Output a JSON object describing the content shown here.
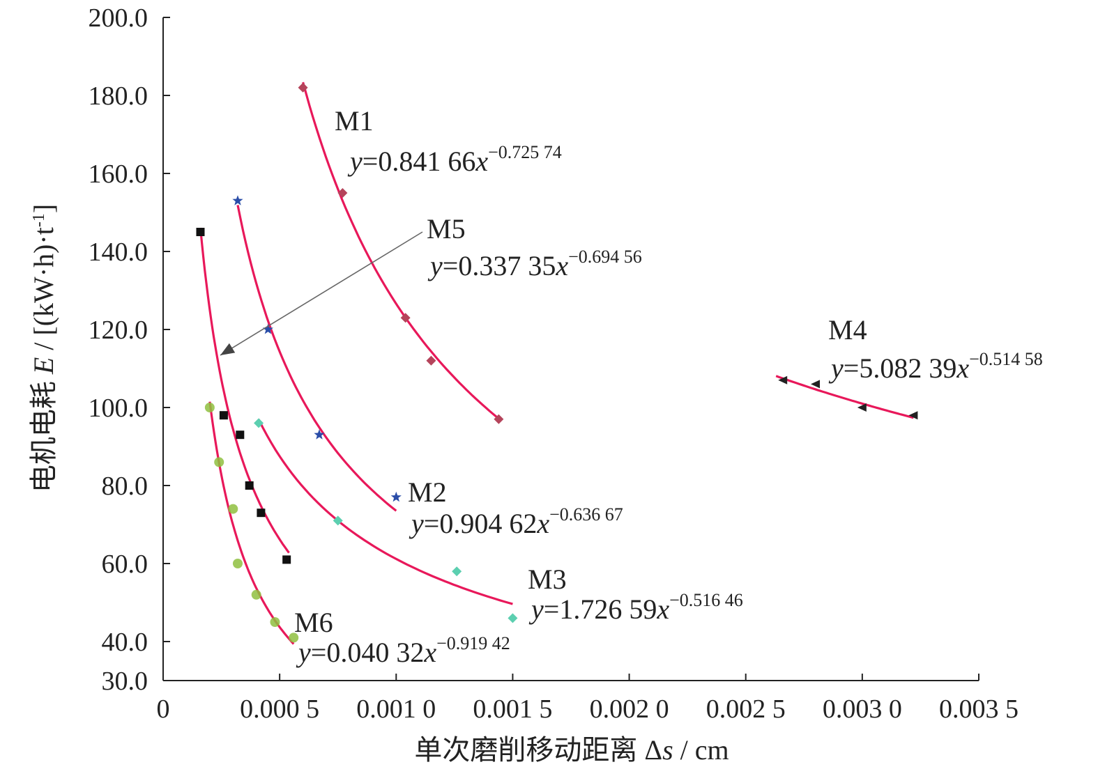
{
  "chart_data": {
    "type": "scatter",
    "xlabel_prefix": "单次磨削移动距离 Δ",
    "xlabel_var": "s",
    "xlabel_suffix": " / cm",
    "ylabel_prefix": "电机电耗 ",
    "ylabel_var": "E",
    "ylabel_suffix": " / [(kW·h)·t",
    "ylabel_sup": "-1",
    "ylabel_end": "]",
    "xlim": [
      0,
      0.0035
    ],
    "ylim": [
      30,
      200
    ],
    "x_ticks": [
      0,
      0.0005,
      0.001,
      0.0015,
      0.002,
      0.0025,
      0.003,
      0.0035
    ],
    "x_tick_labels": [
      "0",
      "0.000 5",
      "0.001 0",
      "0.001 5",
      "0.002 0",
      "0.002 5",
      "0.003 0",
      "0.003 5"
    ],
    "y_ticks": [
      30,
      40,
      60,
      80,
      100,
      120,
      140,
      160,
      180,
      200
    ],
    "y_tick_labels": [
      "30.0",
      "40.0",
      "60.0",
      "80.0",
      "100.0",
      "120.0",
      "140.0",
      "160.0",
      "180.0",
      "200.0"
    ],
    "grid": false,
    "fit_color": "#e8185a",
    "series": [
      {
        "name": "M1",
        "marker": "diamond",
        "color": "#b5445b",
        "x": [
          0.0006,
          0.00077,
          0.00104,
          0.00115,
          0.00144
        ],
        "y": [
          182,
          155,
          123,
          112,
          97
        ],
        "fit": {
          "a": 0.84166,
          "b": -0.72574,
          "x_range": [
            0.0006,
            0.00144
          ]
        },
        "eq_coef": "0.841 66",
        "eq_exp": "−0.725 74"
      },
      {
        "name": "M2",
        "marker": "star",
        "color": "#2a4da8",
        "x": [
          0.00032,
          0.00045,
          0.00067,
          0.001
        ],
        "y": [
          153,
          120,
          93,
          77
        ],
        "fit": {
          "a": 0.90462,
          "b": -0.63667,
          "x_range": [
            0.00032,
            0.001
          ]
        },
        "eq_coef": "0.904 62",
        "eq_exp": "−0.636 67"
      },
      {
        "name": "M3",
        "marker": "diamond",
        "color": "#5ccfb0",
        "x": [
          0.00041,
          0.00075,
          0.00126,
          0.0015
        ],
        "y": [
          96,
          71,
          58,
          46
        ],
        "fit": {
          "a": 1.72659,
          "b": -0.51646,
          "x_range": [
            0.00041,
            0.0015
          ]
        },
        "eq_coef": "1.726 59",
        "eq_exp": "−0.516 46"
      },
      {
        "name": "M4",
        "marker": "triangle",
        "color": "#222222",
        "x": [
          0.00266,
          0.0028,
          0.003,
          0.00322
        ],
        "y": [
          107,
          106,
          100,
          98
        ],
        "fit": {
          "a": 5.08239,
          "b": -0.51458,
          "x_range": [
            0.00263,
            0.00322
          ]
        },
        "eq_coef": "5.082 39",
        "eq_exp": "−0.514 58"
      },
      {
        "name": "M5",
        "marker": "square",
        "color": "#111111",
        "x": [
          0.00016,
          0.00026,
          0.00033,
          0.00037,
          0.00042,
          0.00053
        ],
        "y": [
          145,
          98,
          93,
          80,
          73,
          61
        ],
        "fit": {
          "a": 0.33735,
          "b": -0.69456,
          "x_range": [
            0.00016,
            0.00054
          ]
        },
        "eq_coef": "0.337 35",
        "eq_exp": "−0.694 56"
      },
      {
        "name": "M6",
        "marker": "circle",
        "color": "#8fbf3f",
        "x": [
          0.0002,
          0.00024,
          0.0003,
          0.00032,
          0.0004,
          0.00048,
          0.00056
        ],
        "y": [
          100,
          86,
          74,
          60,
          52,
          45,
          41
        ],
        "fit": {
          "a": 0.04032,
          "b": -0.91942,
          "x_range": [
            0.0002,
            0.00056
          ]
        },
        "eq_coef": "0.040 32",
        "eq_exp": "−0.919 42"
      }
    ]
  }
}
